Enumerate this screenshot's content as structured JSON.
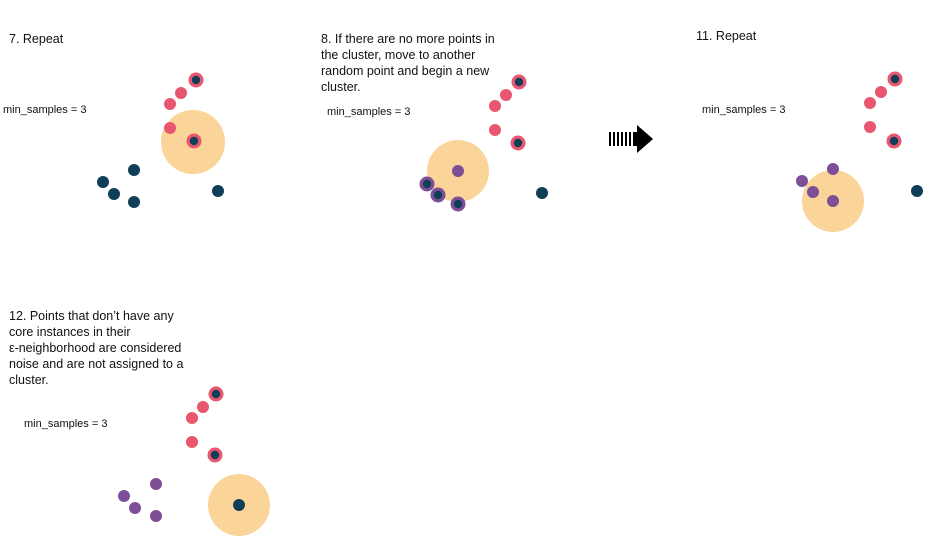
{
  "colors": {
    "core_point": "#e8566f",
    "unvisited_point": "#0f3f58",
    "cluster2_point": "#7c4f96",
    "neighborhood": "#fbd49a",
    "arrow": "#000000"
  },
  "panels": [
    {
      "id": "step7",
      "title_lines": [
        "7.  Repeat"
      ],
      "param": "min_samples = 3"
    },
    {
      "id": "step8",
      "title_lines": [
        "8.  If there are no more points in",
        "the cluster, move to another",
        "random point and begin a new",
        "cluster."
      ],
      "param": "min_samples = 3"
    },
    {
      "id": "step11",
      "title_lines": [
        "11. Repeat"
      ],
      "param": "min_samples = 3"
    },
    {
      "id": "step12",
      "title_lines": [
        "12. Points that don’t have any",
        "core instances in their",
        "ε-neighborhood are considered",
        "noise and are not assigned to a",
        "cluster."
      ],
      "param": "min_samples = 3"
    }
  ],
  "transition_icon": "dashed-right-arrow-icon"
}
